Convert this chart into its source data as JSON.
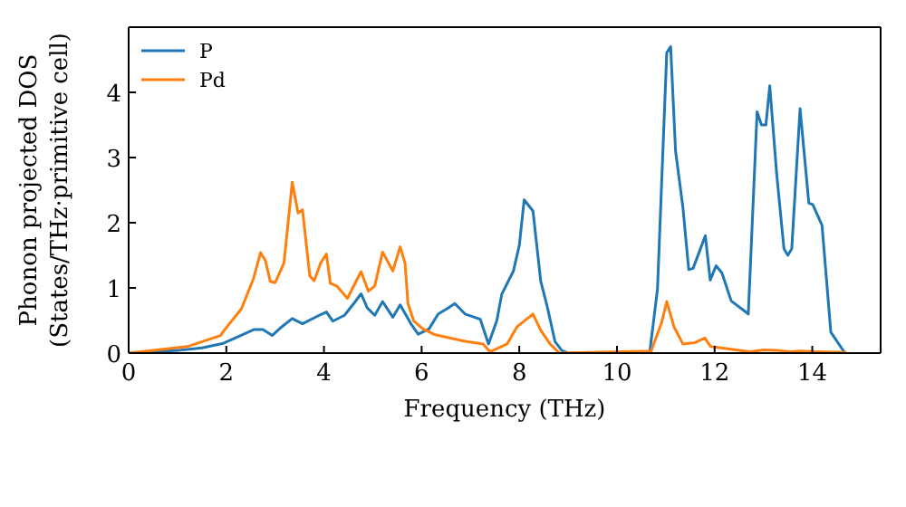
{
  "chart_data": {
    "type": "line",
    "xlabel": "Frequency (THz)",
    "ylabel": "Phonon projected DOS\n(States/THz·primitive cell)",
    "xlim": [
      0,
      15.4
    ],
    "ylim": [
      0,
      5
    ],
    "xticks": [
      0,
      2,
      4,
      6,
      8,
      10,
      12,
      14
    ],
    "yticks": [
      0,
      1,
      2,
      3,
      4
    ],
    "legend": "top left",
    "marker": "none",
    "line_style": "solid",
    "series": [
      {
        "name": "P",
        "color": "#1f77b4",
        "x": [
          0,
          1,
          1.5,
          1.94,
          2.56,
          2.75,
          2.94,
          3.13,
          3.35,
          3.56,
          3.93,
          4.05,
          4.18,
          4.42,
          4.61,
          4.76,
          4.89,
          5.04,
          5.2,
          5.41,
          5.56,
          5.78,
          5.93,
          6.15,
          6.34,
          6.52,
          6.68,
          6.89,
          7.2,
          7.37,
          7.54,
          7.64,
          7.88,
          8.0,
          8.1,
          8.28,
          8.44,
          8.57,
          8.73,
          8.87,
          9.0,
          10.67,
          10.83,
          11.02,
          11.1,
          11.2,
          11.35,
          11.47,
          11.56,
          11.81,
          11.91,
          12.03,
          12.15,
          12.34,
          12.69,
          12.87,
          12.96,
          13.05,
          13.13,
          13.27,
          13.42,
          13.5,
          13.58,
          13.75,
          13.93,
          14.01,
          14.2,
          14.38,
          14.67
        ],
        "values": [
          0,
          0.04,
          0.08,
          0.15,
          0.36,
          0.36,
          0.27,
          0.4,
          0.53,
          0.45,
          0.59,
          0.63,
          0.49,
          0.58,
          0.76,
          0.91,
          0.69,
          0.58,
          0.79,
          0.55,
          0.74,
          0.45,
          0.29,
          0.37,
          0.6,
          0.68,
          0.76,
          0.6,
          0.52,
          0.14,
          0.5,
          0.9,
          1.26,
          1.65,
          2.35,
          2.18,
          1.1,
          0.72,
          0.18,
          0.04,
          0,
          0,
          0.98,
          4.61,
          4.7,
          3.1,
          2.24,
          1.28,
          1.3,
          1.8,
          1.12,
          1.34,
          1.23,
          0.8,
          0.6,
          3.7,
          3.5,
          3.5,
          4.1,
          2.76,
          1.6,
          1.5,
          1.6,
          3.75,
          2.3,
          2.28,
          1.96,
          0.32,
          0
        ]
      },
      {
        "name": "Pd",
        "color": "#ff7f0e",
        "x": [
          0,
          1.2,
          1.88,
          2.0,
          2.31,
          2.56,
          2.7,
          2.8,
          2.9,
          3.0,
          3.18,
          3.35,
          3.47,
          3.56,
          3.71,
          3.8,
          3.93,
          4.05,
          4.13,
          4.26,
          4.48,
          4.76,
          4.91,
          5.04,
          5.2,
          5.41,
          5.56,
          5.66,
          5.72,
          5.84,
          6.03,
          6.28,
          6.89,
          7.26,
          7.4,
          7.75,
          7.95,
          8.28,
          8.44,
          8.63,
          8.82,
          10.7,
          10.92,
          11.02,
          11.17,
          11.35,
          11.6,
          11.8,
          11.92,
          12.34,
          12.72,
          13.0,
          13.3,
          13.56,
          13.75,
          14.1,
          14.7
        ],
        "values": [
          0,
          0.1,
          0.27,
          0.39,
          0.68,
          1.15,
          1.54,
          1.42,
          1.1,
          1.08,
          1.38,
          2.62,
          2.15,
          2.2,
          1.18,
          1.11,
          1.38,
          1.52,
          1.07,
          1.03,
          0.84,
          1.25,
          0.95,
          1.03,
          1.55,
          1.26,
          1.63,
          1.38,
          0.76,
          0.49,
          0.37,
          0.28,
          0.18,
          0.14,
          0.02,
          0.14,
          0.4,
          0.6,
          0.35,
          0.14,
          0,
          0.03,
          0.48,
          0.79,
          0.4,
          0.14,
          0.16,
          0.23,
          0.1,
          0.06,
          0.02,
          0.05,
          0.04,
          0.02,
          0.03,
          0.02,
          0.01
        ]
      }
    ]
  }
}
